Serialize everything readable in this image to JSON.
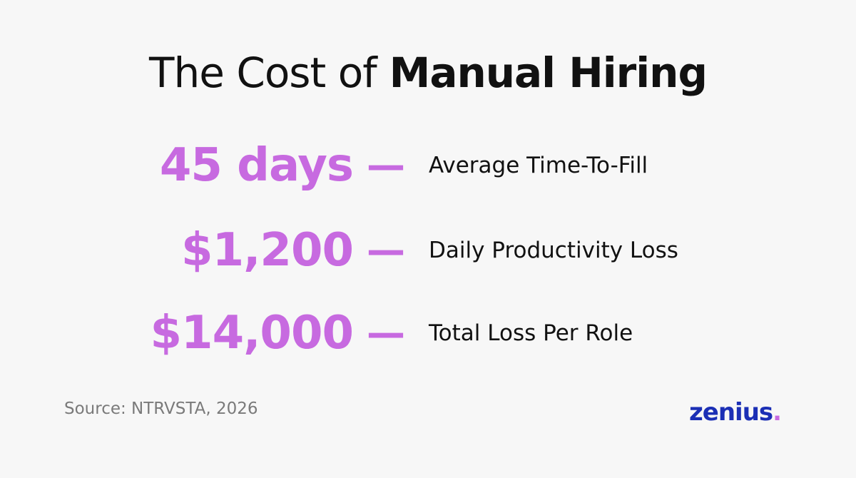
{
  "title": {
    "regular": "The Cost of",
    "bold": "Manual Hiring"
  },
  "stats": [
    {
      "value": "45 days",
      "dash": "—",
      "label": "Average Time-To-Fill"
    },
    {
      "value": "$1,200",
      "dash": "—",
      "label": "Daily Productivity Loss"
    },
    {
      "value": "$14,000",
      "dash": "—",
      "label": "Total Loss Per Role"
    }
  ],
  "source": "Source: NTRVSTA, 2026",
  "logo": {
    "text": "zenius",
    "dot": "."
  }
}
